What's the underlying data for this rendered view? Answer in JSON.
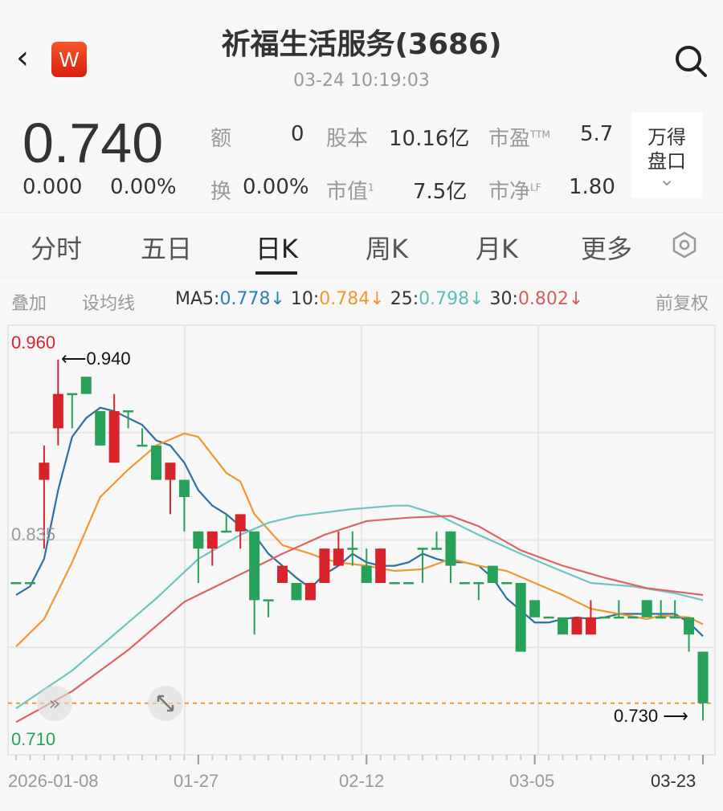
{
  "header": {
    "back_icon": "chevron-left-icon",
    "logo_letter": "W",
    "title": "祈福生活服务(3686)",
    "timestamp": "03-24 10:19:03",
    "search_icon": "search-icon"
  },
  "quote": {
    "price": "0.740",
    "change": "0.000",
    "change_pct": "0.00%",
    "stats": [
      {
        "label": "额",
        "sup": "",
        "value": "0"
      },
      {
        "label": "股本",
        "sup": "",
        "value": "10.16亿"
      },
      {
        "label": "市盈",
        "sup": "TTM",
        "value": "5.7"
      },
      {
        "label": "换",
        "sup": "",
        "value": "0.00%"
      },
      {
        "label": "市值",
        "sup": "1",
        "value": "7.5亿"
      },
      {
        "label": "市净",
        "sup": "LF",
        "value": "1.80"
      }
    ],
    "wind_button": {
      "line1": "万得",
      "line2": "盘口",
      "chevron": "⌄"
    }
  },
  "tabs": [
    {
      "label": "分时"
    },
    {
      "label": "五日"
    },
    {
      "label": "日K",
      "active": true
    },
    {
      "label": "周K"
    },
    {
      "label": "月K"
    },
    {
      "label": "更多"
    }
  ],
  "tabs_settings_icon": "hexagon-settings-icon",
  "ma_bar": {
    "overlay": "叠加",
    "set_ma": "设均线",
    "ma5_label": "MA5:",
    "ma5": "0.778↓",
    "ma10_label": "10:",
    "ma10": "0.784↓",
    "ma25_label": "25:",
    "ma25": "0.798↓",
    "ma30_label": "30:",
    "ma30": "0.802↓",
    "adjust": "前复权"
  },
  "colors": {
    "up": "#d9232b",
    "down": "#27a05a",
    "ma5": "#2e6f9e",
    "ma10": "#f0982e",
    "ma25": "#6cc5c0",
    "ma30": "#de6366",
    "current_line": "#f0982e"
  },
  "chart_data": {
    "type": "candlestick",
    "y_range": [
      0.71,
      0.96
    ],
    "y_labels": {
      "top": "0.960",
      "mid": "0.835",
      "bottom": "0.710"
    },
    "high_annotation": "0.940",
    "low_annotation": "0.730",
    "x_labels": [
      {
        "text": "2026-01-08",
        "index": 3
      },
      {
        "text": "01-27",
        "index": 13
      },
      {
        "text": "02-12",
        "index": 25
      },
      {
        "text": "03-05",
        "index": 37
      },
      {
        "text": "03-23",
        "index": 49
      }
    ],
    "current_price": 0.74,
    "candles_ohlc": [
      [
        0.81,
        0.81,
        0.81,
        0.81
      ],
      [
        0.81,
        0.81,
        0.81,
        0.81
      ],
      [
        0.87,
        0.89,
        0.83,
        0.88
      ],
      [
        0.9,
        0.94,
        0.89,
        0.92
      ],
      [
        0.92,
        0.92,
        0.9,
        0.92
      ],
      [
        0.93,
        0.93,
        0.92,
        0.92
      ],
      [
        0.91,
        0.91,
        0.89,
        0.89
      ],
      [
        0.88,
        0.92,
        0.88,
        0.91
      ],
      [
        0.91,
        0.91,
        0.9,
        0.91
      ],
      [
        0.89,
        0.9,
        0.89,
        0.89
      ],
      [
        0.89,
        0.89,
        0.87,
        0.87
      ],
      [
        0.87,
        0.88,
        0.85,
        0.88
      ],
      [
        0.87,
        0.87,
        0.84,
        0.86
      ],
      [
        0.84,
        0.84,
        0.81,
        0.83
      ],
      [
        0.83,
        0.84,
        0.82,
        0.84
      ],
      [
        0.84,
        0.85,
        0.84,
        0.84
      ],
      [
        0.84,
        0.85,
        0.83,
        0.85
      ],
      [
        0.84,
        0.84,
        0.78,
        0.8
      ],
      [
        0.8,
        0.8,
        0.79,
        0.8
      ],
      [
        0.81,
        0.82,
        0.81,
        0.82
      ],
      [
        0.81,
        0.81,
        0.8,
        0.8
      ],
      [
        0.8,
        0.81,
        0.8,
        0.81
      ],
      [
        0.81,
        0.83,
        0.81,
        0.83
      ],
      [
        0.82,
        0.84,
        0.82,
        0.83
      ],
      [
        0.83,
        0.84,
        0.82,
        0.83
      ],
      [
        0.82,
        0.83,
        0.81,
        0.81
      ],
      [
        0.81,
        0.83,
        0.81,
        0.83
      ],
      [
        0.81,
        0.81,
        0.81,
        0.81
      ],
      [
        0.81,
        0.81,
        0.81,
        0.81
      ],
      [
        0.83,
        0.83,
        0.81,
        0.83
      ],
      [
        0.83,
        0.84,
        0.83,
        0.83
      ],
      [
        0.84,
        0.84,
        0.81,
        0.82
      ],
      [
        0.81,
        0.81,
        0.81,
        0.81
      ],
      [
        0.81,
        0.81,
        0.8,
        0.81
      ],
      [
        0.82,
        0.82,
        0.81,
        0.81
      ],
      [
        0.81,
        0.81,
        0.81,
        0.81
      ],
      [
        0.81,
        0.81,
        0.77,
        0.77
      ],
      [
        0.8,
        0.8,
        0.79,
        0.79
      ],
      [
        0.79,
        0.79,
        0.79,
        0.79
      ],
      [
        0.79,
        0.79,
        0.78,
        0.78
      ],
      [
        0.78,
        0.79,
        0.78,
        0.79
      ],
      [
        0.78,
        0.8,
        0.78,
        0.79
      ],
      [
        0.79,
        0.79,
        0.79,
        0.79
      ],
      [
        0.79,
        0.8,
        0.79,
        0.79
      ],
      [
        0.79,
        0.79,
        0.79,
        0.79
      ],
      [
        0.8,
        0.8,
        0.79,
        0.79
      ],
      [
        0.79,
        0.8,
        0.79,
        0.79
      ],
      [
        0.79,
        0.8,
        0.79,
        0.79
      ],
      [
        0.79,
        0.79,
        0.77,
        0.78
      ],
      [
        0.77,
        0.77,
        0.73,
        0.74
      ]
    ],
    "ma_series": [
      {
        "name": "MA5",
        "points": [
          [
            0,
            0.803
          ],
          [
            1,
            0.808
          ],
          [
            2,
            0.824
          ],
          [
            3,
            0.864
          ],
          [
            4,
            0.895
          ],
          [
            5,
            0.906
          ],
          [
            6,
            0.912
          ],
          [
            7,
            0.91
          ],
          [
            8,
            0.906
          ],
          [
            9,
            0.902
          ],
          [
            10,
            0.893
          ],
          [
            11,
            0.89
          ],
          [
            12,
            0.88
          ],
          [
            13,
            0.864
          ],
          [
            14,
            0.855
          ],
          [
            15,
            0.85
          ],
          [
            16,
            0.843
          ],
          [
            17,
            0.838
          ],
          [
            18,
            0.827
          ],
          [
            19,
            0.82
          ],
          [
            20,
            0.813
          ],
          [
            21,
            0.807
          ],
          [
            22,
            0.815
          ],
          [
            23,
            0.82
          ],
          [
            24,
            0.827
          ],
          [
            25,
            0.822
          ],
          [
            26,
            0.82
          ],
          [
            27,
            0.82
          ],
          [
            28,
            0.822
          ],
          [
            29,
            0.827
          ],
          [
            30,
            0.824
          ],
          [
            31,
            0.822
          ],
          [
            32,
            0.822
          ],
          [
            33,
            0.82
          ],
          [
            34,
            0.813
          ],
          [
            35,
            0.801
          ],
          [
            36,
            0.794
          ],
          [
            37,
            0.787
          ],
          [
            38,
            0.787
          ],
          [
            39,
            0.789
          ],
          [
            40,
            0.79
          ],
          [
            41,
            0.789
          ],
          [
            42,
            0.79
          ],
          [
            43,
            0.792
          ],
          [
            44,
            0.792
          ],
          [
            45,
            0.792
          ],
          [
            46,
            0.792
          ],
          [
            47,
            0.792
          ],
          [
            48,
            0.787
          ],
          [
            49,
            0.779
          ]
        ]
      },
      {
        "name": "MA10",
        "points": [
          [
            0,
            0.773
          ],
          [
            2,
            0.789
          ],
          [
            4,
            0.822
          ],
          [
            6,
            0.86
          ],
          [
            8,
            0.876
          ],
          [
            10,
            0.89
          ],
          [
            12,
            0.897
          ],
          [
            13,
            0.895
          ],
          [
            15,
            0.874
          ],
          [
            16,
            0.869
          ],
          [
            17,
            0.85
          ],
          [
            19,
            0.832
          ],
          [
            21,
            0.827
          ],
          [
            22,
            0.824
          ],
          [
            23,
            0.822
          ],
          [
            25,
            0.82
          ],
          [
            27,
            0.817
          ],
          [
            29,
            0.818
          ],
          [
            31,
            0.824
          ],
          [
            33,
            0.82
          ],
          [
            35,
            0.817
          ],
          [
            37,
            0.81
          ],
          [
            39,
            0.803
          ],
          [
            41,
            0.795
          ],
          [
            43,
            0.792
          ],
          [
            45,
            0.789
          ],
          [
            46,
            0.791
          ],
          [
            48,
            0.79
          ],
          [
            49,
            0.786
          ]
        ]
      },
      {
        "name": "MA25",
        "points": [
          [
            0,
            0.737
          ],
          [
            4,
            0.759
          ],
          [
            7,
            0.78
          ],
          [
            10,
            0.801
          ],
          [
            13,
            0.824
          ],
          [
            16,
            0.838
          ],
          [
            18,
            0.845
          ],
          [
            20,
            0.849
          ],
          [
            24,
            0.853
          ],
          [
            27,
            0.855
          ],
          [
            28,
            0.855
          ],
          [
            30,
            0.85
          ],
          [
            33,
            0.838
          ],
          [
            36,
            0.827
          ],
          [
            38,
            0.82
          ],
          [
            41,
            0.81
          ],
          [
            44,
            0.808
          ],
          [
            47,
            0.804
          ],
          [
            49,
            0.8
          ]
        ]
      },
      {
        "name": "MA30",
        "points": [
          [
            0,
            0.729
          ],
          [
            4,
            0.747
          ],
          [
            8,
            0.771
          ],
          [
            12,
            0.799
          ],
          [
            16,
            0.815
          ],
          [
            19,
            0.827
          ],
          [
            22,
            0.838
          ],
          [
            25,
            0.846
          ],
          [
            28,
            0.848
          ],
          [
            31,
            0.849
          ],
          [
            33,
            0.843
          ],
          [
            36,
            0.829
          ],
          [
            39,
            0.82
          ],
          [
            42,
            0.813
          ],
          [
            45,
            0.807
          ],
          [
            47,
            0.805
          ],
          [
            49,
            0.803
          ]
        ]
      }
    ]
  },
  "chart_controls": {
    "scroll_icon": "double-chevron-right-icon",
    "expand_icon": "expand-arrows-icon"
  }
}
